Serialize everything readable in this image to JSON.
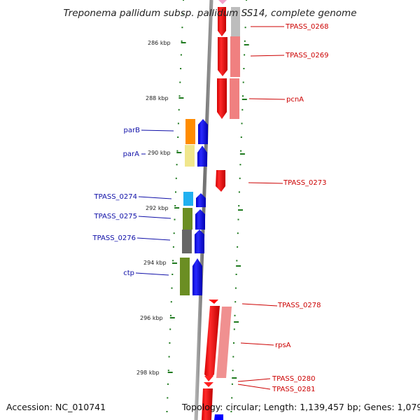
{
  "title": "Treponema pallidum subsp. pallidum SS14, complete genome",
  "footer": {
    "accession": "Accession: NC_010741",
    "summary": "Topology: circular; Length: 1,139,457 bp; Genes: 1,079"
  },
  "scale": {
    "ticks": [
      "286 kbp",
      "288 kbp",
      "290 kbp",
      "292 kbp",
      "294 kbp",
      "296 kbp",
      "298 kbp"
    ]
  },
  "colors": {
    "forward_strand": "#ff0000",
    "reverse_strand": "#0000ff",
    "backbone": "#808080",
    "tick": "#1f7a1f"
  },
  "genes": [
    {
      "id": "TPASS_0268",
      "label": "TPASS_0268",
      "strand": "+"
    },
    {
      "id": "TPASS_0269",
      "label": "TPASS_0269",
      "strand": "+"
    },
    {
      "id": "pcnA",
      "label": "pcnA",
      "strand": "+"
    },
    {
      "id": "parB",
      "label": "parB",
      "strand": "-"
    },
    {
      "id": "parA",
      "label": "parA",
      "strand": "-"
    },
    {
      "id": "TPASS_0273",
      "label": "TPASS_0273",
      "strand": "+"
    },
    {
      "id": "TPASS_0274",
      "label": "TPASS_0274",
      "strand": "-"
    },
    {
      "id": "TPASS_0275",
      "label": "TPASS_0275",
      "strand": "-"
    },
    {
      "id": "TPASS_0276",
      "label": "TPASS_0276",
      "strand": "-"
    },
    {
      "id": "ctp",
      "label": "ctp",
      "strand": "-"
    },
    {
      "id": "TPASS_0278",
      "label": "TPASS_0278",
      "strand": "+"
    },
    {
      "id": "rpsA",
      "label": "rpsA",
      "strand": "+"
    },
    {
      "id": "TPASS_0280",
      "label": "TPASS_0280",
      "strand": "+"
    },
    {
      "id": "TPASS_0281",
      "label": "TPASS_0281",
      "strand": "+"
    }
  ]
}
